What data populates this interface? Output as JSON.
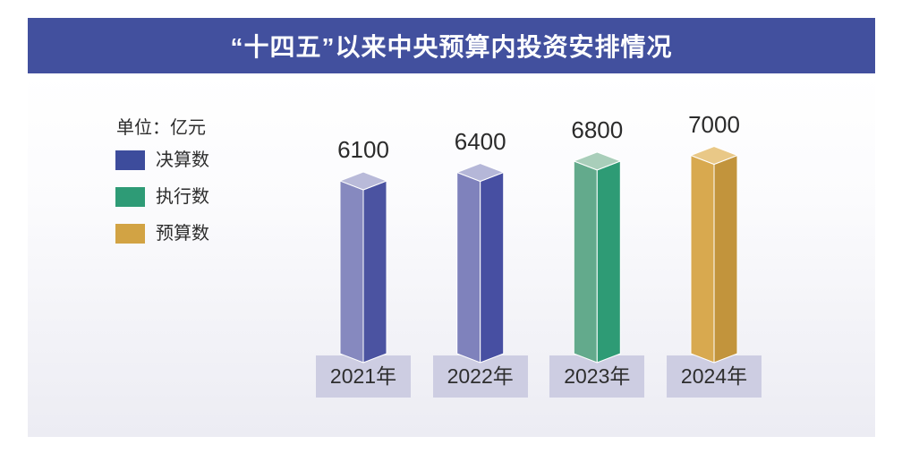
{
  "title": "“十四五”以来中央预算内投资安排情况",
  "unit_label": "单位：亿元",
  "legend": [
    {
      "label": "决算数",
      "color": "#3D4C9C"
    },
    {
      "label": "执行数",
      "color": "#2E9B76"
    },
    {
      "label": "预算数",
      "color": "#D2A344"
    }
  ],
  "chart_data": {
    "type": "bar",
    "title": "“十四五”以来中央预算内投资安排情况",
    "unit": "亿元",
    "categories": [
      "2021年",
      "2022年",
      "2023年",
      "2024年"
    ],
    "values": [
      6100,
      6400,
      6800,
      7000
    ],
    "value_labels": [
      "6100",
      "6400",
      "6800",
      "7000"
    ],
    "series_of_each_bar": [
      "决算数",
      "决算数",
      "执行数",
      "预算数"
    ],
    "ylim": [
      0,
      7400
    ],
    "grid": false,
    "legend_position": "left",
    "bar_style": "3d-column",
    "bars": [
      {
        "category": "2021年",
        "value": 6100,
        "value_label": "6100",
        "series": "决算数",
        "left_color": "#8689BF",
        "right_color": "#4B53A1",
        "top_color": "#B9BAD9"
      },
      {
        "category": "2022年",
        "value": 6400,
        "value_label": "6400",
        "series": "决算数",
        "left_color": "#7F82BC",
        "right_color": "#474FA2",
        "top_color": "#B5B7D8"
      },
      {
        "category": "2023年",
        "value": 6800,
        "value_label": "6800",
        "series": "执行数",
        "left_color": "#63AA8C",
        "right_color": "#2E9B75",
        "top_color": "#A9CEBA"
      },
      {
        "category": "2024年",
        "value": 7000,
        "value_label": "7000",
        "series": "预算数",
        "left_color": "#D8A94F",
        "right_color": "#C2943C",
        "top_color": "#E9C887"
      }
    ]
  },
  "colors": {
    "banner_background": "#42509E",
    "banner_text": "#FFFFFF",
    "chart_background_top": "#FFFFFF",
    "chart_background_bottom": "#ECECF3",
    "year_box_background": "#CDCDE2",
    "text_dark": "#2D2D2D",
    "face_seam": "#FFFFFF"
  }
}
